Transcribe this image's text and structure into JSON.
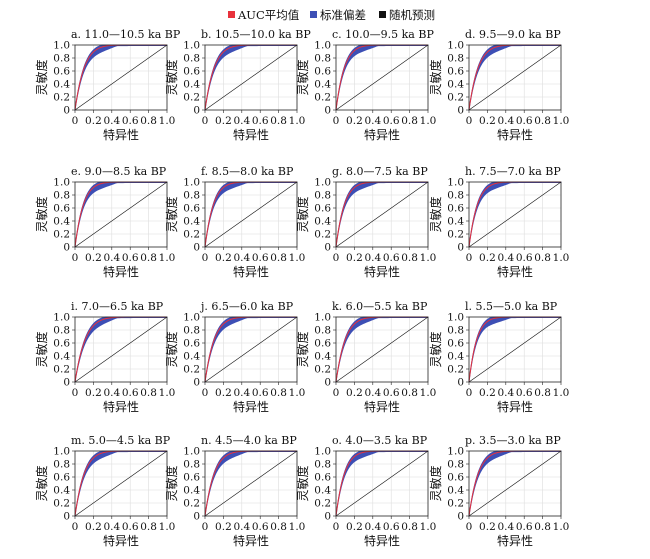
{
  "legend": [
    {
      "label": "AUC平均值",
      "color": "#e8323c"
    },
    {
      "label": "标准偏差",
      "color": "#3d4fb5"
    },
    {
      "label": "随机预测",
      "color": "#111111"
    }
  ],
  "chart_data": {
    "type": "line",
    "xlabel": "特异性",
    "ylabel": "灵敏度",
    "xlim": [
      0,
      1.0
    ],
    "ylim": [
      0,
      1.0
    ],
    "xticks": [
      "0",
      "0.2",
      "0.4",
      "0.6",
      "0.8",
      "1.0"
    ],
    "yticks": [
      "0",
      "0.2",
      "0.4",
      "0.6",
      "0.8",
      "1.0"
    ],
    "grid": true,
    "legend_position": "top-center",
    "panels": [
      {
        "title": "a. 11.0—10.5 ka BP",
        "roc_exponent": 10
      },
      {
        "title": "b. 10.5—10.0 ka BP",
        "roc_exponent": 10
      },
      {
        "title": "c. 10.0—9.5 ka BP",
        "roc_exponent": 11
      },
      {
        "title": "d. 9.5—9.0 ka BP",
        "roc_exponent": 10
      },
      {
        "title": "e. 9.0—8.5 ka BP",
        "roc_exponent": 11
      },
      {
        "title": "f. 8.5—8.0 ka BP",
        "roc_exponent": 11
      },
      {
        "title": "g. 8.0—7.5 ka BP",
        "roc_exponent": 11
      },
      {
        "title": "h. 7.5—7.0 ka BP",
        "roc_exponent": 11
      },
      {
        "title": "i. 7.0—6.5 ka BP",
        "roc_exponent": 9
      },
      {
        "title": "j. 6.5—6.0 ka BP",
        "roc_exponent": 10
      },
      {
        "title": "k. 6.0—5.5 ka BP",
        "roc_exponent": 10
      },
      {
        "title": "l. 5.5—5.0 ka BP",
        "roc_exponent": 12
      },
      {
        "title": "m. 5.0—4.5 ka BP",
        "roc_exponent": 10
      },
      {
        "title": "n. 4.5—4.0 ka BP",
        "roc_exponent": 10
      },
      {
        "title": "o. 4.0—3.5 ka BP",
        "roc_exponent": 11
      },
      {
        "title": "p. 3.5—3.0 ka BP",
        "roc_exponent": 10
      }
    ]
  }
}
